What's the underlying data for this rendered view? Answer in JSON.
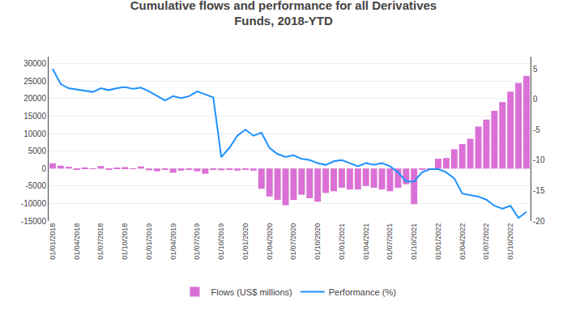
{
  "chart_data": {
    "type": "bar",
    "title": "Cumulative flows and performance for all Derivatives\nFunds, 2018-YTD",
    "categories": [
      "01/01/2018",
      null,
      null,
      "01/04/2018",
      null,
      null,
      "01/07/2018",
      null,
      null,
      "01/10/2018",
      null,
      null,
      "01/01/2019",
      null,
      null,
      "01/04/2019",
      null,
      null,
      "01/07/2019",
      null,
      null,
      "01/10/2019",
      null,
      null,
      "01/01/2020",
      null,
      null,
      "01/04/2020",
      null,
      null,
      "01/07/2020",
      null,
      null,
      "01/10/2020",
      null,
      null,
      "01/01/2021",
      null,
      null,
      "01/04/2021",
      null,
      null,
      "01/07/2021",
      null,
      null,
      "01/10/2021",
      null,
      null,
      "01/01/2022",
      null,
      null,
      "01/04/2022",
      null,
      null,
      "01/07/2022",
      null,
      null,
      "01/10/2022",
      null,
      null
    ],
    "series": [
      {
        "name": "Flows (US$ millions)",
        "type": "bar",
        "color": "#da70d6",
        "values": [
          1500,
          800,
          500,
          -200,
          300,
          -100,
          700,
          -300,
          200,
          400,
          -100,
          600,
          -500,
          -800,
          -400,
          -1200,
          -600,
          -200,
          -800,
          -1500,
          -400,
          -500,
          -200,
          -600,
          -200,
          -600,
          -5800,
          -8000,
          -9000,
          -10500,
          -9000,
          -7500,
          -8500,
          -9500,
          -7000,
          -6500,
          -5500,
          -6000,
          -6000,
          -5000,
          -5500,
          -6000,
          -6500,
          -5500,
          -4500,
          -10200,
          -300,
          -200,
          2800,
          3000,
          5500,
          7000,
          8500,
          12000,
          14000,
          16500,
          19000,
          22000,
          24500,
          26500
        ]
      },
      {
        "name": "Performance (%)",
        "type": "line",
        "color": "#1e90ff",
        "axis": "y2",
        "values": [
          5.0,
          2.5,
          1.8,
          1.6,
          1.4,
          1.2,
          1.8,
          1.5,
          1.8,
          2.0,
          1.7,
          1.9,
          1.3,
          0.5,
          -0.2,
          0.5,
          0.2,
          0.5,
          1.3,
          0.8,
          0.3,
          -9.5,
          -8.0,
          -6.0,
          -5.0,
          -6.0,
          -5.5,
          -8.0,
          -9.0,
          -9.5,
          -9.2,
          -9.8,
          -10.0,
          -10.5,
          -10.8,
          -10.2,
          -10.0,
          -10.5,
          -11.0,
          -10.5,
          -10.8,
          -10.5,
          -11.0,
          -12.0,
          -13.5,
          -13.5,
          -12.0,
          -11.5,
          -11.5,
          -12.0,
          -13.0,
          -15.5,
          -15.8,
          -16.0,
          -16.5,
          -17.5,
          -18.0,
          -17.5,
          -19.5,
          -18.5
        ]
      }
    ],
    "ylim": [
      -15000,
      32000
    ],
    "yticks": [
      -15000,
      -10000,
      -5000,
      0,
      5000,
      10000,
      15000,
      20000,
      25000,
      30000
    ],
    "y2lim": [
      -20,
      7
    ],
    "y2ticks": [
      -20,
      -15,
      -10,
      -5,
      0,
      5
    ],
    "grid": true,
    "legend": "bottom"
  }
}
